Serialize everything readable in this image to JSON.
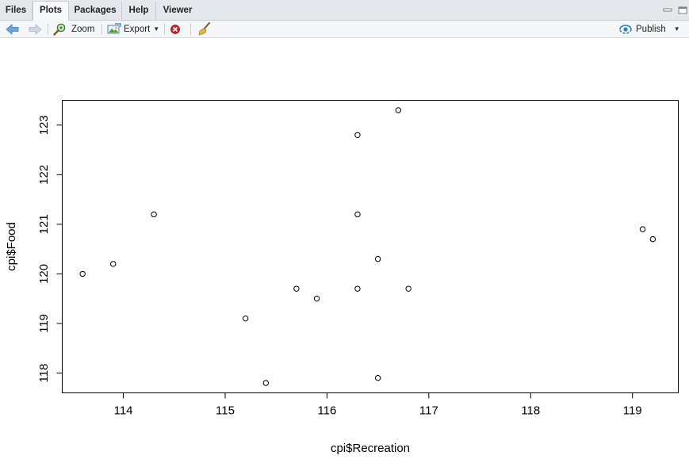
{
  "tabs": [
    {
      "label": "Files",
      "active": false
    },
    {
      "label": "Plots",
      "active": true
    },
    {
      "label": "Packages",
      "active": false
    },
    {
      "label": "Help",
      "active": false
    },
    {
      "label": "Viewer",
      "active": false
    }
  ],
  "toolbar": {
    "zoom_label": "Zoom",
    "export_label": "Export",
    "publish_label": "Publish"
  },
  "icons": {
    "back": "arrow-left-icon",
    "forward": "arrow-right-icon",
    "zoom": "magnifier-icon",
    "export": "image-export-icon",
    "remove": "remove-plot-icon",
    "clear": "broom-icon",
    "publish": "publish-icon"
  },
  "colors": {
    "accent": "#2e7fc0",
    "remove_red": "#c0282f",
    "tab_bg": "#e4e8ec"
  },
  "chart_data": {
    "type": "scatter",
    "title": "",
    "xlabel": "cpi$Recreation",
    "ylabel": "cpi$Food",
    "xlim": [
      113.4,
      119.45
    ],
    "ylim": [
      117.6,
      123.5
    ],
    "x_ticks": [
      114,
      115,
      116,
      117,
      118,
      119
    ],
    "y_ticks": [
      118,
      119,
      120,
      121,
      122,
      123
    ],
    "grid": false,
    "points": [
      {
        "x": 113.6,
        "y": 120.0
      },
      {
        "x": 113.9,
        "y": 120.2
      },
      {
        "x": 114.3,
        "y": 121.2
      },
      {
        "x": 115.2,
        "y": 119.1
      },
      {
        "x": 115.4,
        "y": 117.8
      },
      {
        "x": 115.7,
        "y": 119.7
      },
      {
        "x": 115.9,
        "y": 119.5
      },
      {
        "x": 116.3,
        "y": 122.8
      },
      {
        "x": 116.3,
        "y": 121.2
      },
      {
        "x": 116.3,
        "y": 119.7
      },
      {
        "x": 116.5,
        "y": 120.3
      },
      {
        "x": 116.5,
        "y": 117.9
      },
      {
        "x": 116.7,
        "y": 123.3
      },
      {
        "x": 116.8,
        "y": 119.7
      },
      {
        "x": 119.1,
        "y": 120.9
      },
      {
        "x": 119.2,
        "y": 120.7
      }
    ]
  }
}
